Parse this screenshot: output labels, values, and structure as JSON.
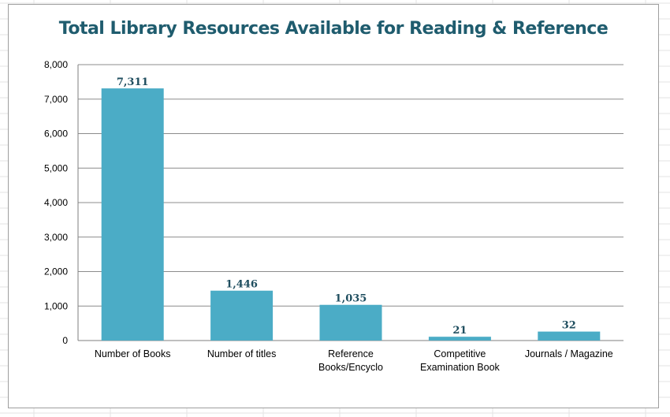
{
  "chart_data": {
    "type": "bar",
    "title": "Total Library Resources Available for Reading & Reference",
    "categories": [
      [
        "Number of Books"
      ],
      [
        "Number of titles"
      ],
      [
        "Reference",
        "Books/Encyclo"
      ],
      [
        "Competitive",
        "Examination Book"
      ],
      [
        "Journals / Magazine"
      ]
    ],
    "values": [
      7311,
      1446,
      1035,
      21,
      32
    ],
    "data_labels": [
      "7,311",
      "1,446",
      "1,035",
      "21",
      "32"
    ],
    "display_values": [
      7311,
      1446,
      1035,
      110,
      260
    ],
    "ylim": [
      0,
      8000
    ],
    "yticks": [
      0,
      1000,
      2000,
      3000,
      4000,
      5000,
      6000,
      7000,
      8000
    ],
    "ytick_labels": [
      "0",
      "1,000",
      "2,000",
      "3,000",
      "4,000",
      "5,000",
      "6,000",
      "7,000",
      "8,000"
    ],
    "xlabel": "",
    "ylabel": "",
    "grid": true,
    "legend": "none",
    "bar_color": "#4bacc6",
    "title_color": "#1f5c6e",
    "label_color": "#1f4e5f"
  }
}
